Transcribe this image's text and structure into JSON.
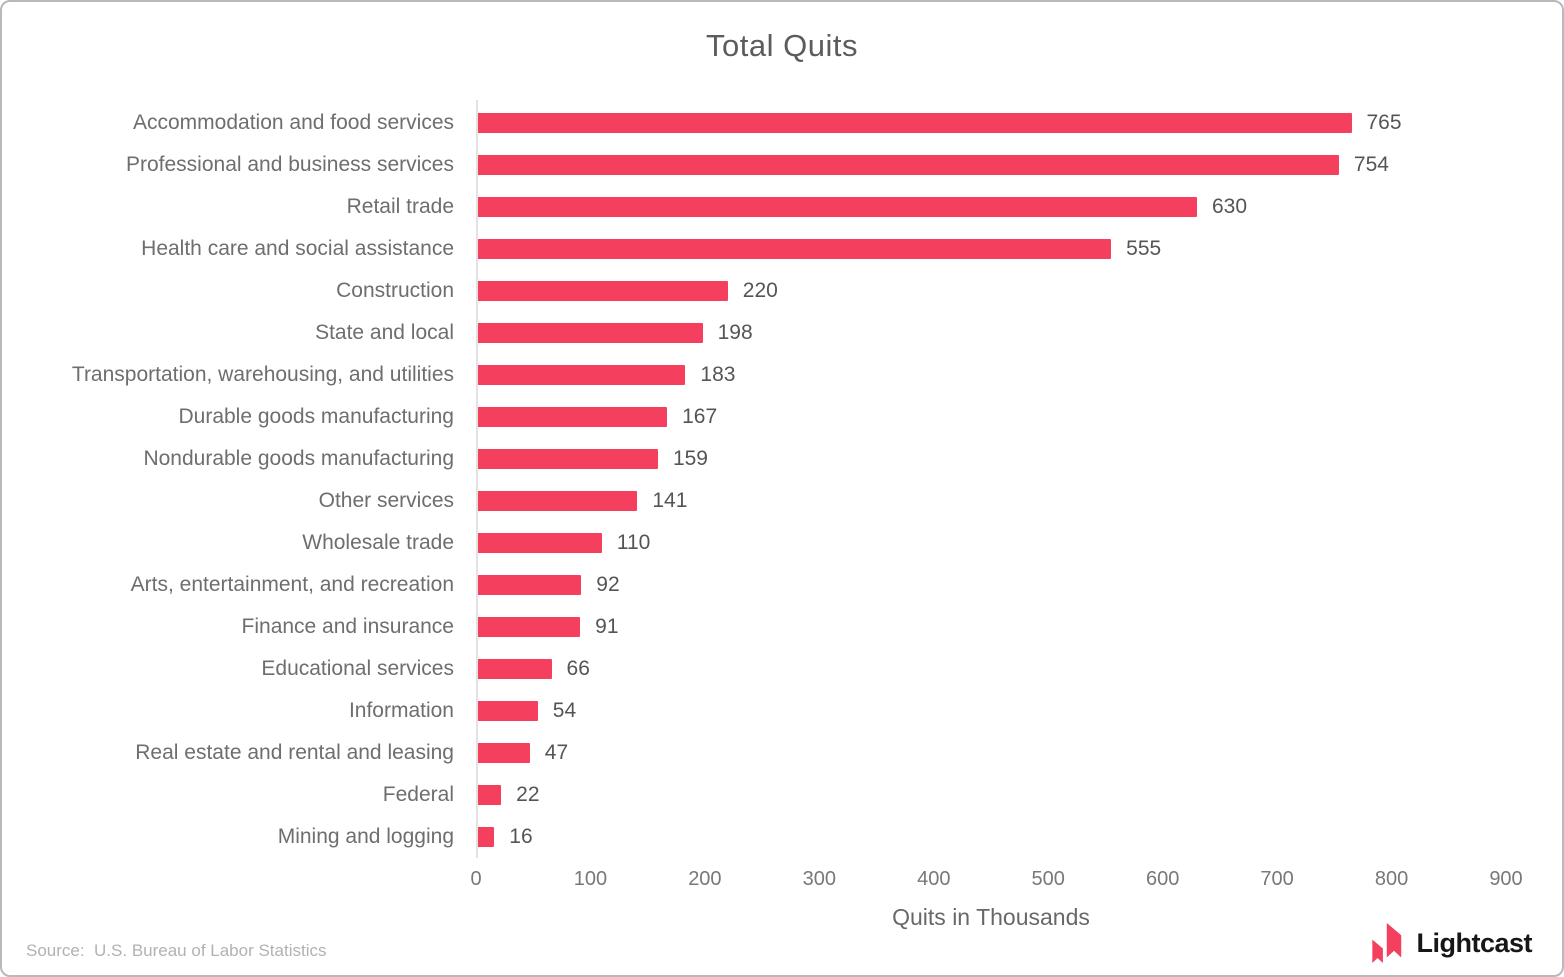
{
  "chart_data": {
    "type": "bar",
    "orientation": "horizontal",
    "title": "Total Quits",
    "xlabel": "Quits in Thousands",
    "categories": [
      "Accommodation and food services",
      "Professional and business services",
      "Retail trade",
      "Health care and social assistance",
      "Construction",
      "State and local",
      "Transportation, warehousing, and utilities",
      "Durable goods manufacturing",
      "Nondurable goods manufacturing",
      "Other services",
      "Wholesale trade",
      "Arts, entertainment, and recreation",
      "Finance and insurance",
      "Educational services",
      "Information",
      "Real estate and rental and leasing",
      "Federal",
      "Mining and logging"
    ],
    "values": [
      765,
      754,
      630,
      555,
      220,
      198,
      183,
      167,
      159,
      141,
      110,
      92,
      91,
      66,
      54,
      47,
      22,
      16
    ],
    "xlim": [
      0,
      900
    ],
    "xticks": [
      0,
      100,
      200,
      300,
      400,
      500,
      600,
      700,
      800,
      900
    ],
    "grid": false,
    "data_labels": true,
    "legend": "none",
    "bar_color": "#f43f5e"
  },
  "footer": {
    "source_label": "Source:  U.S. Bureau of Labor Statistics",
    "brand_name": "Lightcast",
    "brand_color": "#f43f5e"
  }
}
